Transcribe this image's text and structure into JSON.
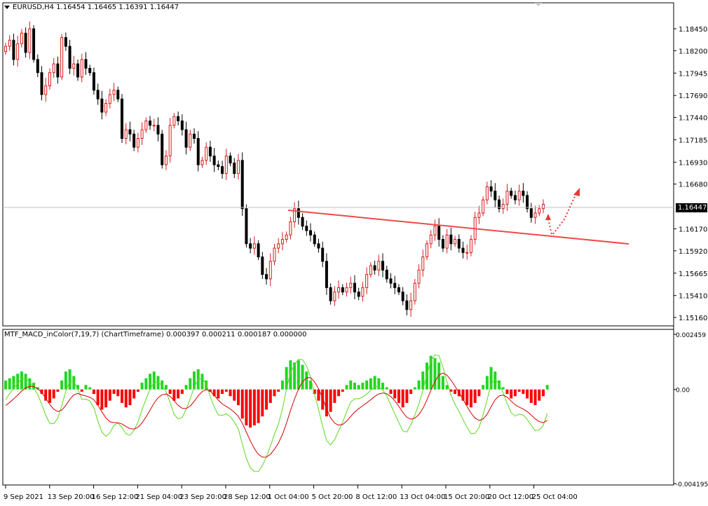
{
  "main": {
    "symbol_title": "EURUSD,H4  1.16454 1.16465 1.16391 1.16447",
    "current_price": "1.16447",
    "price_ticks": [
      "1.18450",
      "1.18200",
      "1.17945",
      "1.17690",
      "1.17440",
      "1.17185",
      "1.16930",
      "1.16680",
      "1.16170",
      "1.15920",
      "1.15665",
      "1.15410",
      "1.15160"
    ]
  },
  "indicator": {
    "title": "MTF_MACD_inColor(7,19,7) (ChartTimeframe) 0.000397 0.000211 0.000187 0.000000",
    "ticks": [
      "0.002459",
      "0.00",
      "-0.004195"
    ]
  },
  "time_ticks": [
    "9 Sep 2021",
    "13 Sep 20:00",
    "16 Sep 12:00",
    "21 Sep 04:00",
    "23 Sep 20:00",
    "28 Sep 12:00",
    "1 Oct 04:00",
    "5 Oct 20:00",
    "8 Oct 12:00",
    "13 Oct 04:00",
    "15 Oct 20:00",
    "20 Oct 12:00",
    "25 Oct 04:00"
  ],
  "colors": {
    "bull": "#d81b1b",
    "bear": "#000000",
    "macd_up": "#22d622",
    "macd_down": "#ff0000",
    "trendline": "#ef4a4a",
    "signal_red": "#d40000",
    "signal_green": "#5bd81e"
  },
  "chart_data": {
    "type": "candlestick",
    "symbol": "EURUSD",
    "timeframe": "H4",
    "ylim": [
      1.1508,
      1.1873
    ],
    "close": [
      1.1825,
      1.1832,
      1.181,
      1.1828,
      1.184,
      1.1818,
      1.1845,
      1.181,
      1.1795,
      1.177,
      1.178,
      1.1795,
      1.1805,
      1.179,
      1.1835,
      1.1825,
      1.18,
      1.1805,
      1.179,
      1.181,
      1.18,
      1.1795,
      1.1775,
      1.1765,
      1.175,
      1.176,
      1.177,
      1.1775,
      1.1765,
      1.172,
      1.173,
      1.1725,
      1.171,
      1.172,
      1.173,
      1.174,
      1.1735,
      1.1735,
      1.1725,
      1.169,
      1.17,
      1.1735,
      1.1745,
      1.174,
      1.173,
      1.171,
      1.1725,
      1.172,
      1.169,
      1.1695,
      1.171,
      1.17,
      1.169,
      1.1688,
      1.168,
      1.17,
      1.1692,
      1.168,
      1.1695,
      1.164,
      1.16,
      1.1595,
      1.16,
      1.1585,
      1.1565,
      1.156,
      1.158,
      1.1595,
      1.16,
      1.1605,
      1.161,
      1.1625,
      1.164,
      1.163,
      1.162,
      1.1615,
      1.161,
      1.16,
      1.1595,
      1.158,
      1.155,
      1.1535,
      1.1545,
      1.155,
      1.1545,
      1.155,
      1.1555,
      1.1545,
      1.154,
      1.155,
      1.1565,
      1.1575,
      1.157,
      1.158,
      1.157,
      1.156,
      1.1555,
      1.155,
      1.1545,
      1.1535,
      1.1525,
      1.1535,
      1.1555,
      1.157,
      1.1585,
      1.16,
      1.161,
      1.162,
      1.1605,
      1.1595,
      1.161,
      1.16,
      1.1605,
      1.1595,
      1.159,
      1.159,
      1.1605,
      1.163,
      1.1635,
      1.165,
      1.1665,
      1.166,
      1.165,
      1.164,
      1.1645,
      1.166,
      1.1655,
      1.165,
      1.166,
      1.1655,
      1.164,
      1.163,
      1.1635,
      1.164,
      1.1645
    ],
    "macd_hist": [
      0.0004,
      0.0005,
      0.0006,
      0.0007,
      0.0008,
      0.0007,
      0.0005,
      0.0003,
      0.0001,
      -0.0002,
      -0.0005,
      -0.0006,
      -0.0004,
      -0.0001,
      0.0004,
      0.0008,
      0.0009,
      0.0006,
      0.0002,
      -0.0001,
      0.0002,
      0.0001,
      -0.0002,
      -0.0007,
      -0.0009,
      -0.0008,
      -0.0005,
      -0.0002,
      -0.0003,
      -0.0006,
      -0.0008,
      -0.0007,
      -0.0004,
      -0.0001,
      0.0003,
      0.0005,
      0.0007,
      0.0008,
      0.0006,
      0.0004,
      0.0002,
      -0.0002,
      -0.0005,
      -0.0004,
      -0.0002,
      0.0002,
      0.0005,
      0.0008,
      0.0009,
      0.0007,
      0.0004,
      -0.0001,
      -0.0003,
      -0.0004,
      -0.0002,
      -0.0001,
      -0.0003,
      -0.0005,
      -0.0007,
      -0.0013,
      -0.0016,
      -0.0017,
      -0.0016,
      -0.0015,
      -0.0012,
      -0.0009,
      -0.0006,
      -0.0003,
      -0.0001,
      0.0004,
      0.001,
      0.0013,
      0.0012,
      0.0013,
      0.0011,
      0.0008,
      0.0004,
      -0.0002,
      -0.0005,
      -0.0009,
      -0.0012,
      -0.001,
      -0.0006,
      -0.0003,
      -0.0001,
      0.0002,
      0.0004,
      0.0003,
      0.0002,
      0.0003,
      0.0004,
      0.0005,
      0.0006,
      0.0005,
      0.0003,
      0.0001,
      -0.0002,
      -0.0004,
      -0.0006,
      -0.0008,
      -0.0006,
      -0.0002,
      0.0001,
      0.0004,
      0.0008,
      0.0012,
      0.0015,
      0.0014,
      0.0012,
      0.0006,
      0.0002,
      -0.0001,
      -0.0002,
      -0.0003,
      -0.0005,
      -0.0007,
      -0.0008,
      -0.0006,
      -0.0003,
      0.0002,
      0.0006,
      0.001,
      0.0008,
      0.0004,
      0.0001,
      -0.0002,
      -0.0004,
      -0.0003,
      -0.0001,
      -0.0002,
      -0.0004,
      -0.0006,
      -0.0007,
      -0.0005,
      -0.0003,
      0.0002
    ],
    "macd_ylim": [
      -0.004195,
      0.002459
    ]
  }
}
